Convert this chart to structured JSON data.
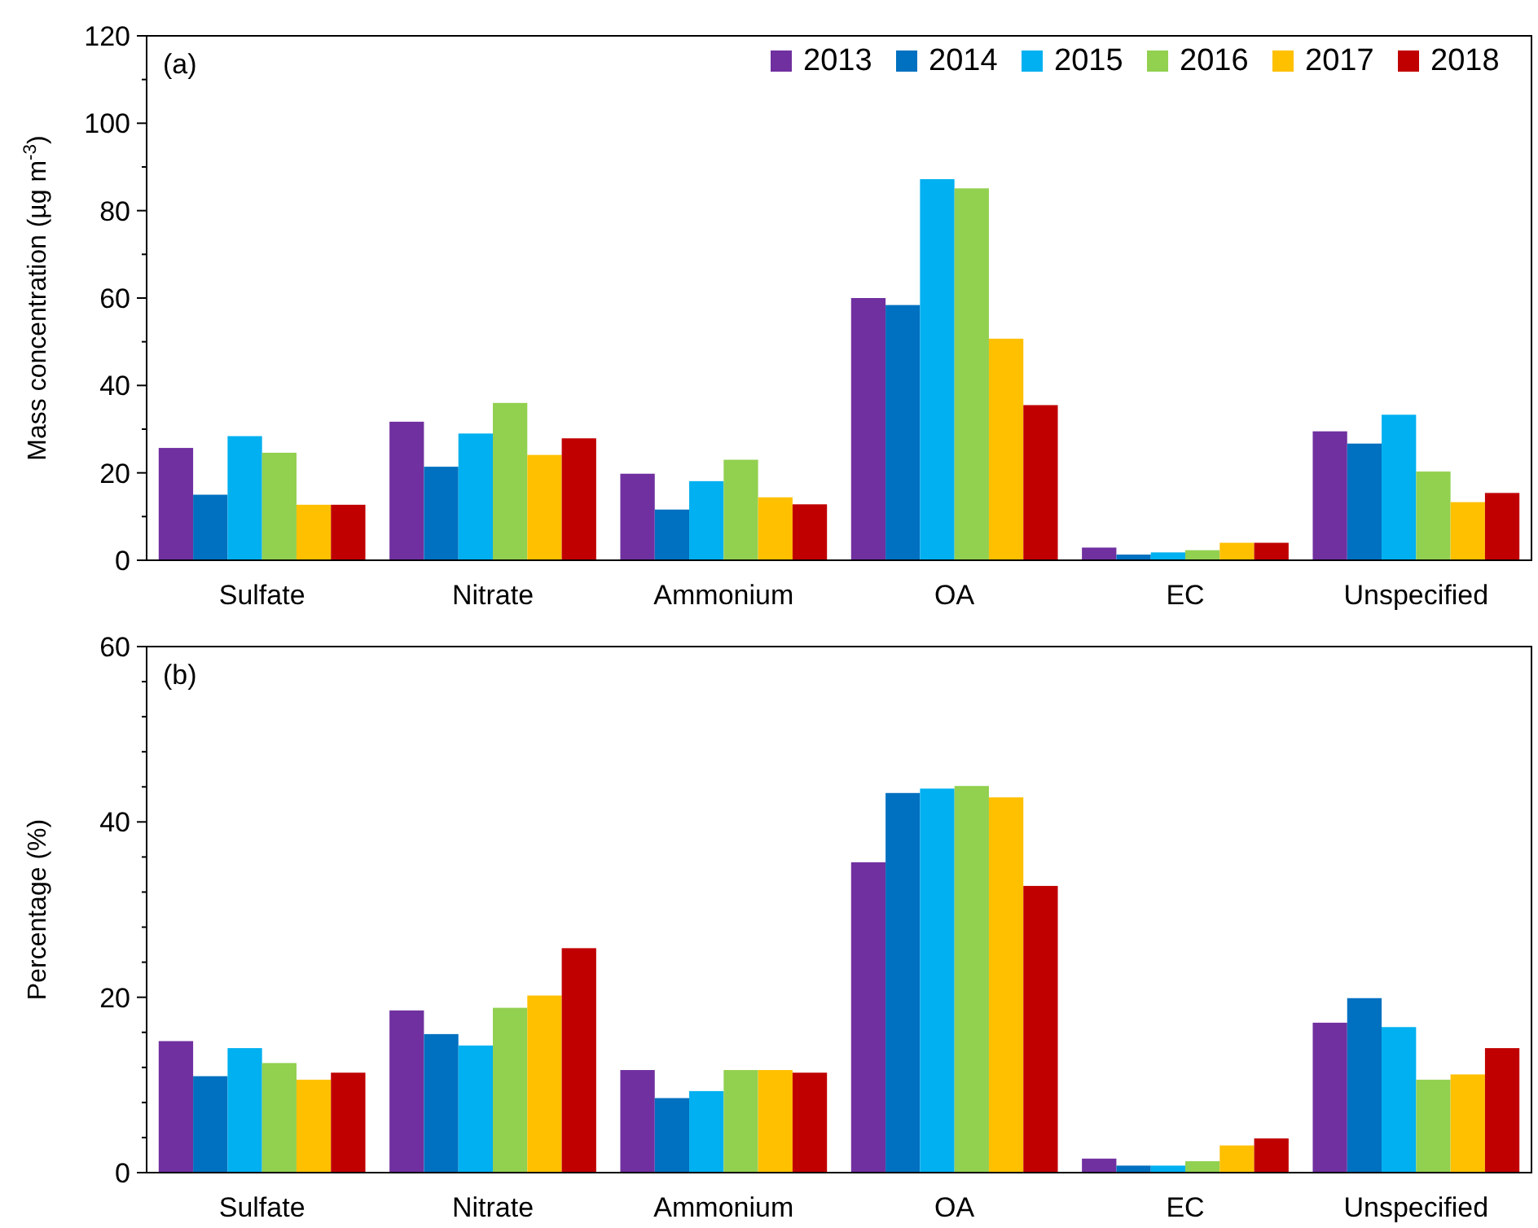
{
  "chart_data": [
    {
      "type": "bar",
      "title": "(a)",
      "ylabel": "Mass concentration (µg m$^{-3}$)",
      "categories": [
        "Sulfate",
        "Nitrate",
        "Ammonium",
        "OA",
        "EC",
        "Unspecified"
      ],
      "series": [
        {
          "name": "2013",
          "color": "#7030a0",
          "values": [
            25.7,
            31.7,
            19.8,
            60,
            2.9,
            29.5
          ]
        },
        {
          "name": "2014",
          "color": "#0070c0",
          "values": [
            15,
            21.4,
            11.6,
            58.4,
            1.3,
            26.7
          ]
        },
        {
          "name": "2015",
          "color": "#00b0f0",
          "values": [
            28.4,
            29,
            18.1,
            87.2,
            1.8,
            33.3
          ]
        },
        {
          "name": "2016",
          "color": "#92d050",
          "values": [
            24.6,
            36,
            23,
            85.1,
            2.3,
            20.3
          ]
        },
        {
          "name": "2017",
          "color": "#ffc000",
          "values": [
            12.7,
            24.1,
            14.4,
            50.7,
            4,
            13.3
          ]
        },
        {
          "name": "2018",
          "color": "#c00000",
          "values": [
            12.7,
            27.9,
            12.8,
            35.5,
            4,
            15.4
          ]
        }
      ],
      "ylim": [
        0,
        120
      ],
      "yticks": [
        0,
        {
          "value": 10,
          "label": null
        },
        20,
        {
          "value": 30,
          "label": null
        },
        40,
        {
          "value": 50,
          "label": null
        },
        60,
        {
          "value": 70,
          "label": null
        },
        80,
        {
          "value": 90,
          "label": null
        },
        100,
        {
          "value": 110,
          "label": null
        },
        120
      ],
      "legend": "top right"
    },
    {
      "type": "bar",
      "title": "(b)",
      "ylabel": "Percentage (%)",
      "categories": [
        "Sulfate",
        "Nitrate",
        "Ammonium",
        "OA",
        "EC",
        "Unspecified"
      ],
      "series": [
        {
          "color": "#7030a0",
          "values": [
            15,
            18.5,
            11.7,
            35.4,
            1.6,
            17.1
          ]
        },
        {
          "color": "#0070c0",
          "values": [
            11,
            15.8,
            8.5,
            43.3,
            0.8,
            19.9
          ]
        },
        {
          "color": "#00b0f0",
          "values": [
            14.2,
            14.5,
            9.3,
            43.8,
            0.8,
            16.6
          ]
        },
        {
          "color": "#92d050",
          "values": [
            12.5,
            18.8,
            11.7,
            44.1,
            1.3,
            10.6
          ]
        },
        {
          "color": "#ffc000",
          "values": [
            10.6,
            20.2,
            11.7,
            42.8,
            3.1,
            11.2
          ]
        },
        {
          "color": "#c00000",
          "values": [
            11.4,
            25.6,
            11.4,
            32.7,
            3.9,
            14.2
          ]
        }
      ],
      "ylim": [
        0,
        60
      ],
      "yticks": [
        0,
        {
          "value": 4,
          "label": null
        },
        {
          "value": 8,
          "label": null
        },
        {
          "value": 12,
          "label": null
        },
        {
          "value": 16,
          "label": null
        },
        20,
        {
          "value": 24,
          "label": null
        },
        {
          "value": 28,
          "label": null
        },
        {
          "value": 32,
          "label": null
        },
        {
          "value": 36,
          "label": null
        },
        40,
        {
          "value": 44,
          "label": null
        },
        {
          "value": 48,
          "label": null
        },
        {
          "value": 52,
          "label": null
        },
        {
          "value": 56,
          "label": null
        },
        60
      ],
      "legend": false
    }
  ]
}
